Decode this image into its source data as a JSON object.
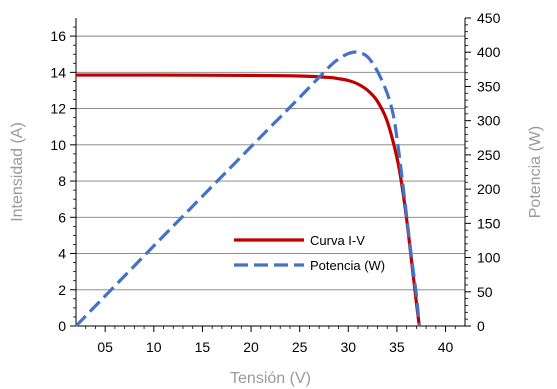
{
  "chart_data": {
    "type": "line",
    "xlabel": "Tensión (V)",
    "ylabel": "Intensidad (A)",
    "y2label": "Potencia (W)",
    "x_ticks": [
      {
        "value": 5,
        "label": "05"
      },
      {
        "value": 10,
        "label": "10"
      },
      {
        "value": 15,
        "label": "15"
      },
      {
        "value": 20,
        "label": "20"
      },
      {
        "value": 25,
        "label": "25"
      },
      {
        "value": 30,
        "label": "30"
      },
      {
        "value": 35,
        "label": "35"
      },
      {
        "value": 40,
        "label": "40"
      }
    ],
    "xlim": [
      2,
      42
    ],
    "ylim": [
      0,
      17
    ],
    "y2lim": [
      0,
      450
    ],
    "y_ticks": [
      "0",
      "2",
      "4",
      "6",
      "8",
      "10",
      "12",
      "14",
      "16"
    ],
    "y2_ticks": [
      "0",
      "50",
      "100",
      "150",
      "200",
      "250",
      "300",
      "350",
      "400",
      "450"
    ],
    "grid": "horizontal",
    "legend_position": "center-right",
    "series": [
      {
        "name": "Curva I-V",
        "axis": "left",
        "color": "#c00000",
        "style": "solid",
        "x": [
          2,
          10,
          20,
          25,
          28,
          29,
          30,
          31,
          32,
          33,
          34,
          35,
          35.5,
          36,
          36.5,
          37,
          37.3
        ],
        "y": [
          13.85,
          13.85,
          13.83,
          13.8,
          13.72,
          13.65,
          13.55,
          13.35,
          13.0,
          12.4,
          11.3,
          9.3,
          7.8,
          5.9,
          3.6,
          1.3,
          0
        ]
      },
      {
        "name": "Potencia (W)",
        "axis": "right",
        "color": "#4472c4",
        "style": "dashed",
        "x": [
          2,
          10,
          20,
          25,
          28,
          29,
          30,
          31,
          32,
          33,
          34,
          34.6,
          35,
          35.5,
          36,
          36.5,
          37,
          37.3
        ],
        "y": [
          0,
          117,
          262,
          334,
          378,
          390,
          398,
          400,
          393,
          372,
          340,
          310,
          275,
          220,
          160,
          100,
          45,
          0
        ]
      }
    ]
  }
}
